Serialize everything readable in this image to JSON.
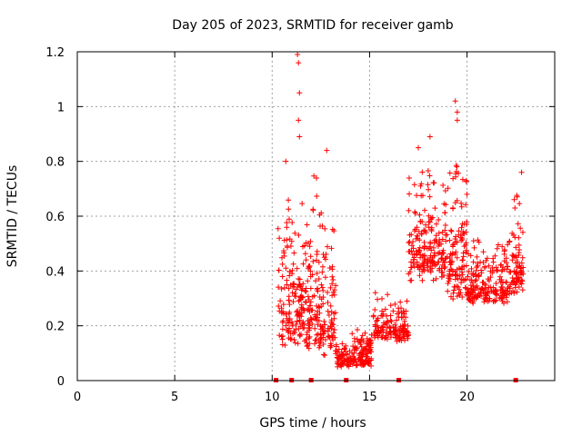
{
  "chart_data": {
    "type": "scatter",
    "title": "Day 205 of 2023, SRMTID for receiver gamb",
    "xlabel": "GPS time / hours",
    "ylabel": "SRMTID / TECUs",
    "xlim": [
      0,
      24.5
    ],
    "ylim": [
      0,
      1.2
    ],
    "xticks": [
      0,
      5,
      10,
      15,
      20
    ],
    "yticks": [
      0,
      0.2,
      0.4,
      0.6,
      0.8,
      1,
      1.2
    ],
    "grid": true,
    "marker": "+",
    "series_color": "#ff0000",
    "baseline_markers": [
      10.2,
      11.0,
      12.0,
      13.8,
      16.5,
      22.5
    ],
    "segments": [
      {
        "start": 10.3,
        "end": 12.5,
        "base": 0.25,
        "spread": 0.55,
        "count": 260
      },
      {
        "start": 12.5,
        "end": 13.3,
        "base": 0.2,
        "spread": 0.5,
        "count": 90
      },
      {
        "start": 13.3,
        "end": 14.0,
        "base": 0.07,
        "spread": 0.08,
        "count": 60
      },
      {
        "start": 14.0,
        "end": 15.1,
        "base": 0.08,
        "spread": 0.12,
        "count": 120
      },
      {
        "start": 15.1,
        "end": 17.0,
        "base": 0.18,
        "spread": 0.15,
        "count": 150
      },
      {
        "start": 17.0,
        "end": 19.0,
        "base": 0.45,
        "spread": 0.35,
        "count": 200
      },
      {
        "start": 19.0,
        "end": 20.0,
        "base": 0.4,
        "spread": 0.45,
        "count": 120
      },
      {
        "start": 20.0,
        "end": 22.3,
        "base": 0.33,
        "spread": 0.2,
        "count": 200
      },
      {
        "start": 22.3,
        "end": 22.9,
        "base": 0.4,
        "spread": 0.35,
        "count": 70
      }
    ],
    "notable_points": [
      {
        "x": 11.3,
        "y": 1.19
      },
      {
        "x": 11.35,
        "y": 1.16
      },
      {
        "x": 11.4,
        "y": 1.05
      },
      {
        "x": 11.35,
        "y": 0.95
      },
      {
        "x": 11.4,
        "y": 0.89
      },
      {
        "x": 10.7,
        "y": 0.8
      },
      {
        "x": 12.8,
        "y": 0.84
      },
      {
        "x": 19.4,
        "y": 1.02
      },
      {
        "x": 19.5,
        "y": 0.98
      },
      {
        "x": 19.5,
        "y": 0.95
      },
      {
        "x": 18.1,
        "y": 0.89
      },
      {
        "x": 17.5,
        "y": 0.85
      },
      {
        "x": 22.8,
        "y": 0.76
      }
    ]
  }
}
